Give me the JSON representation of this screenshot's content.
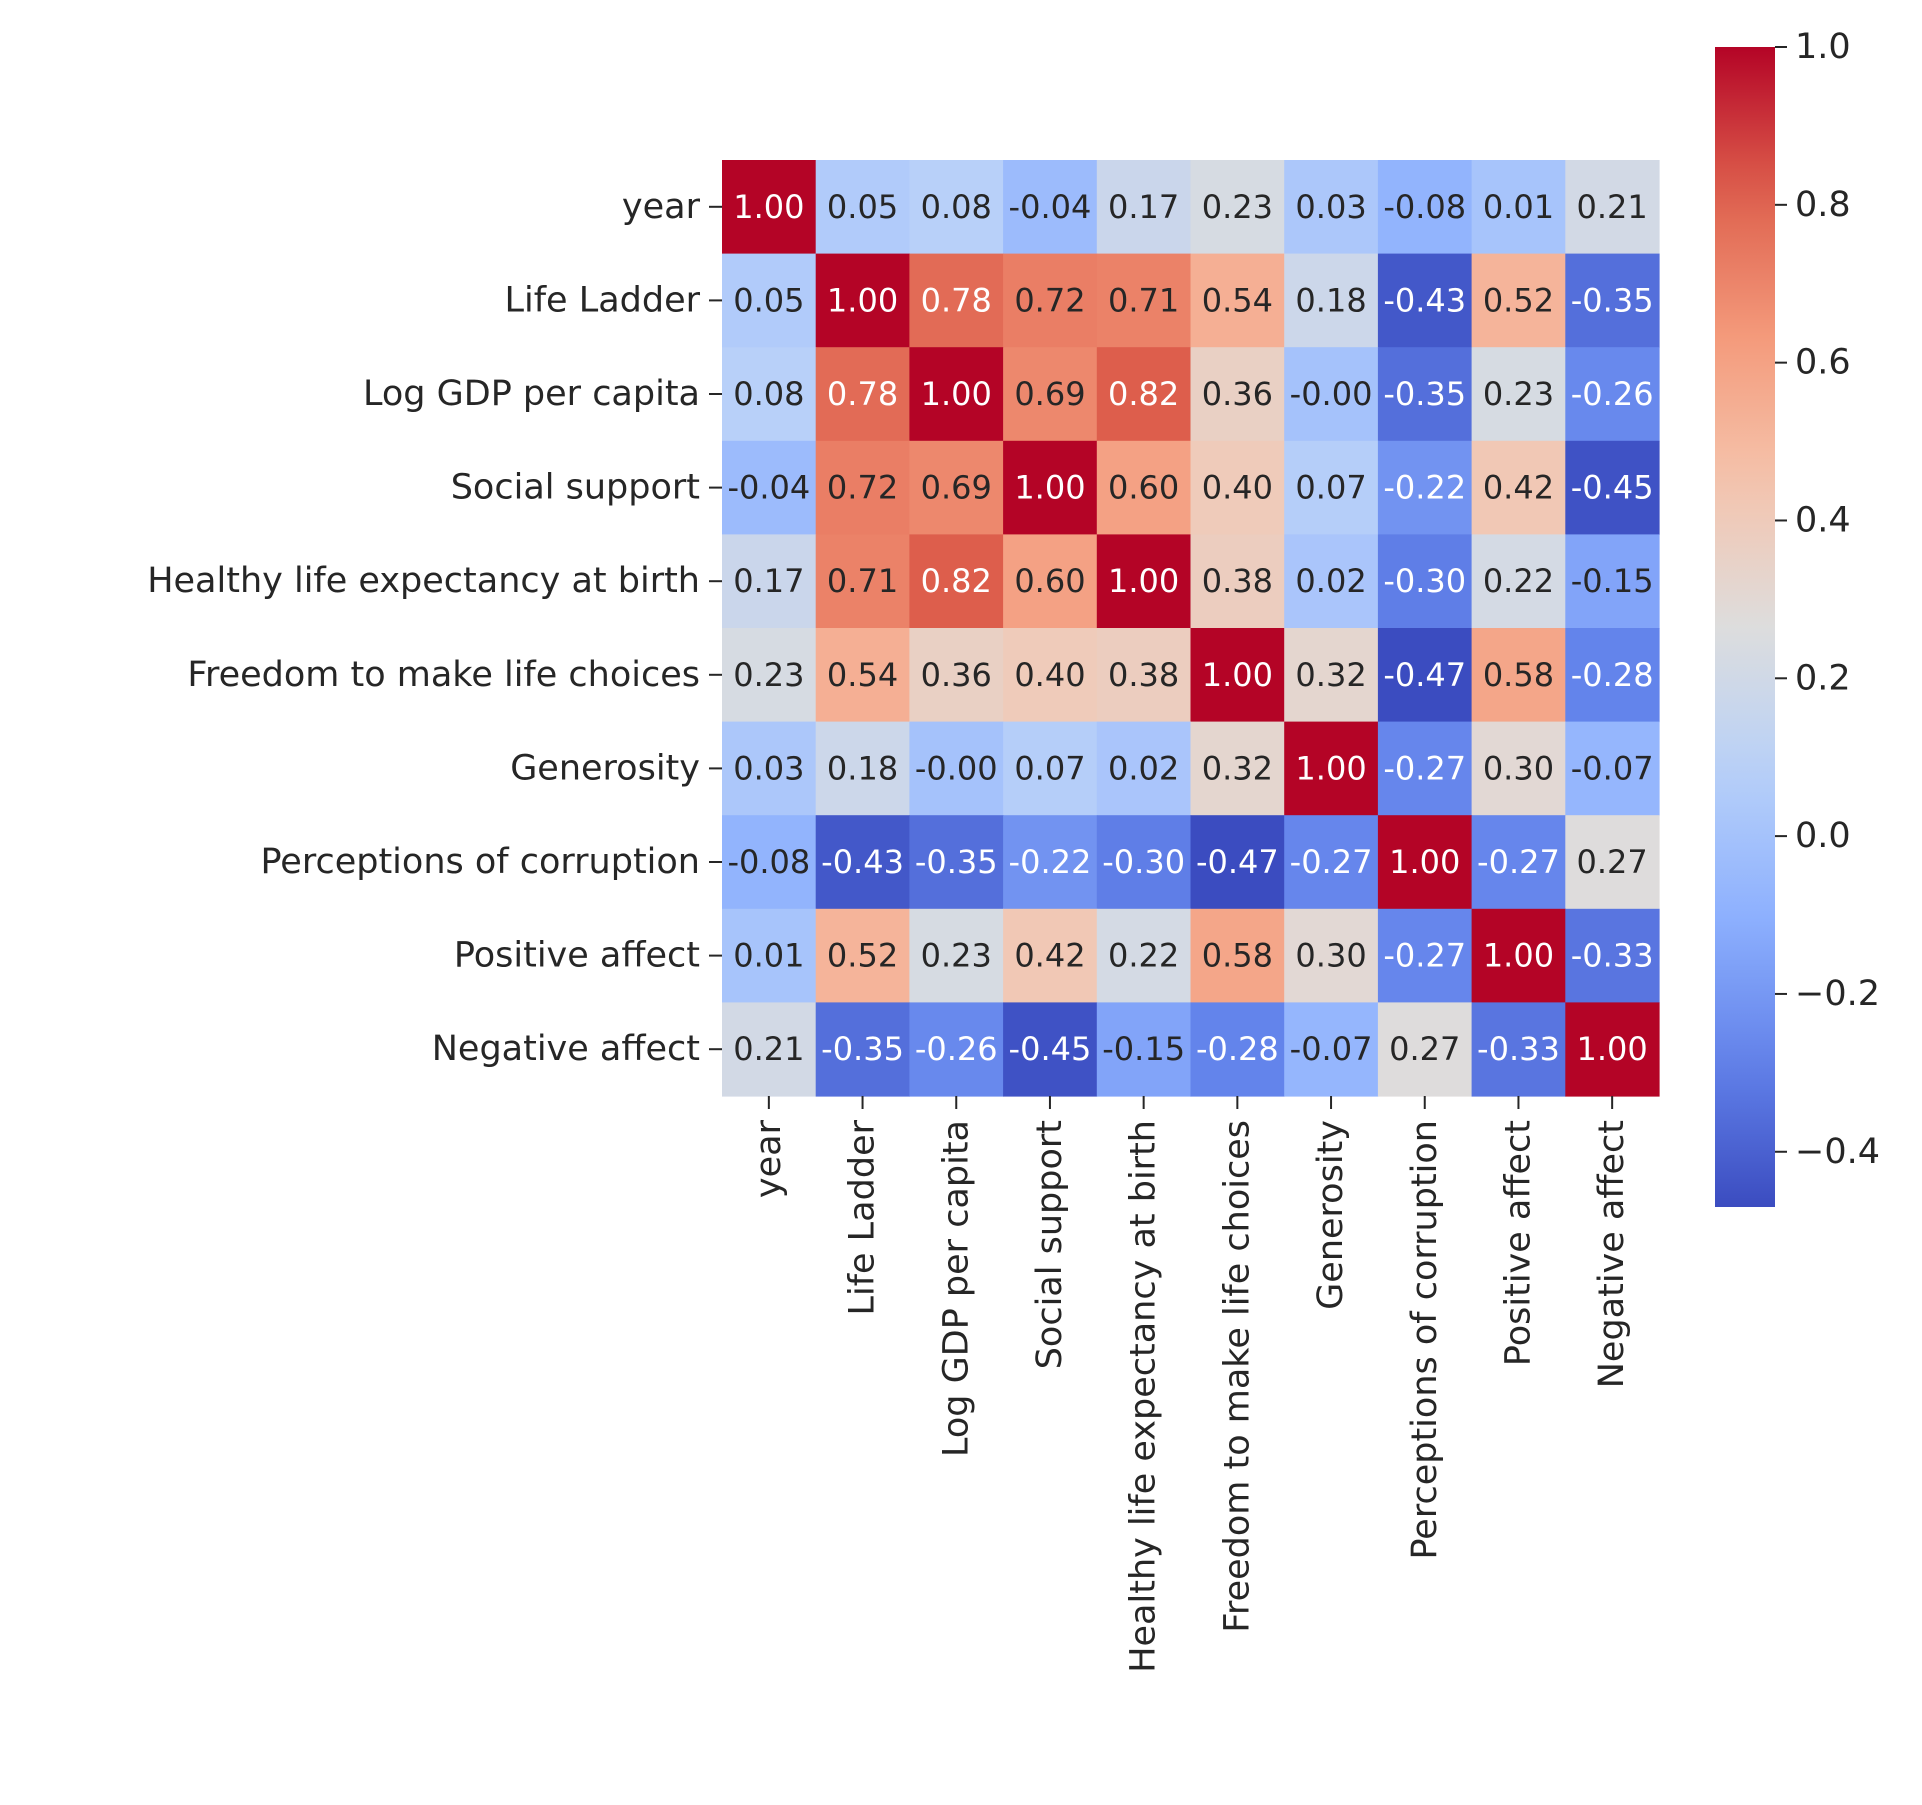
{
  "chart_data": {
    "type": "heatmap",
    "title": "",
    "xlabel": "",
    "ylabel": "",
    "labels": [
      "year",
      "Life Ladder",
      "Log GDP per capita",
      "Social support",
      "Healthy life expectancy at birth",
      "Freedom to make life choices",
      "Generosity",
      "Perceptions of corruption",
      "Positive affect",
      "Negative affect"
    ],
    "matrix": [
      [
        1.0,
        0.05,
        0.08,
        -0.04,
        0.17,
        0.23,
        0.03,
        -0.08,
        0.01,
        0.21
      ],
      [
        0.05,
        1.0,
        0.78,
        0.72,
        0.71,
        0.54,
        0.18,
        -0.43,
        0.52,
        -0.35
      ],
      [
        0.08,
        0.78,
        1.0,
        0.69,
        0.82,
        0.36,
        -0.0,
        -0.35,
        0.23,
        -0.26
      ],
      [
        -0.04,
        0.72,
        0.69,
        1.0,
        0.6,
        0.4,
        0.07,
        -0.22,
        0.42,
        -0.45
      ],
      [
        0.17,
        0.71,
        0.82,
        0.6,
        1.0,
        0.38,
        0.02,
        -0.3,
        0.22,
        -0.15
      ],
      [
        0.23,
        0.54,
        0.36,
        0.4,
        0.38,
        1.0,
        0.32,
        -0.47,
        0.58,
        -0.28
      ],
      [
        0.03,
        0.18,
        -0.0,
        0.07,
        0.02,
        0.32,
        1.0,
        -0.27,
        0.3,
        -0.07
      ],
      [
        -0.08,
        -0.43,
        -0.35,
        -0.22,
        -0.3,
        -0.47,
        -0.27,
        1.0,
        -0.27,
        0.27
      ],
      [
        0.01,
        0.52,
        0.23,
        0.42,
        0.22,
        0.58,
        0.3,
        -0.27,
        1.0,
        -0.33
      ],
      [
        0.21,
        -0.35,
        -0.26,
        -0.45,
        -0.15,
        -0.28,
        -0.07,
        0.27,
        -0.33,
        1.0
      ]
    ],
    "annotation_format": "0.00",
    "colormap": "coolwarm",
    "vmin": -0.47,
    "vmax": 1.0,
    "colorbar_ticks": [
      1.0,
      0.8,
      0.6,
      0.4,
      0.2,
      0.0,
      -0.2,
      -0.4
    ],
    "colorbar_tick_labels": [
      "1.0",
      "0.8",
      "0.6",
      "0.4",
      "0.2",
      "0.0",
      "−0.2",
      "−0.4"
    ],
    "grid": false,
    "legend": "colorbar-right"
  }
}
